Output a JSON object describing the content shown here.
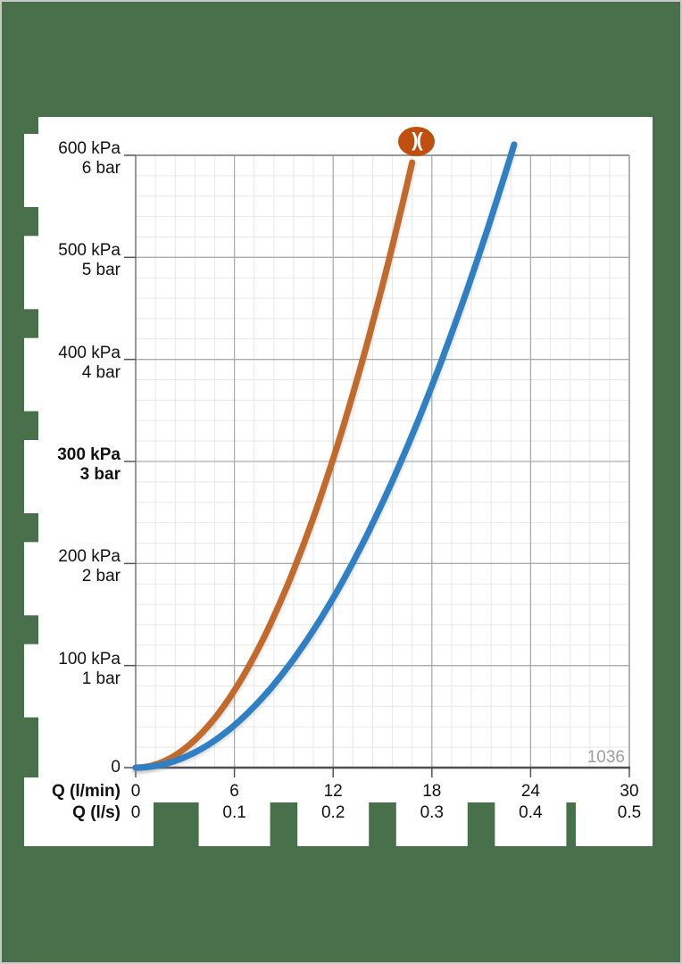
{
  "page": {
    "background_color": "#48704B",
    "panel_color": "#FFFFFF",
    "border_color": "#C8C8C8"
  },
  "branding": {
    "logo_glyph": ")(",
    "logo_color": "#BF4E0F"
  },
  "annotation": {
    "code": "1036"
  },
  "chart_data": {
    "type": "line",
    "x_axis": {
      "unit_rows": [
        {
          "label": "Q (l/min)",
          "ticks": [
            {
              "q": 0,
              "label": "0"
            },
            {
              "q": 6,
              "label": "6"
            },
            {
              "q": 12,
              "label": "12"
            },
            {
              "q": 18,
              "label": "18"
            },
            {
              "q": 24,
              "label": "24"
            },
            {
              "q": 30,
              "label": "30"
            }
          ]
        },
        {
          "label": "Q (l/s)",
          "ticks": [
            {
              "q": 0,
              "label": "0"
            },
            {
              "q": 6,
              "label": "0.1"
            },
            {
              "q": 12,
              "label": "0.2"
            },
            {
              "q": 18,
              "label": "0.3"
            },
            {
              "q": 24,
              "label": "0.4"
            },
            {
              "q": 30,
              "label": "0.5"
            }
          ]
        }
      ],
      "xlim_lmin": [
        0,
        30
      ],
      "major_step_lmin": 6,
      "minor_step_lmin": 1.2
    },
    "y_axis": {
      "ticks": [
        {
          "kpa_label": "600 kPa",
          "bar_label": "6 bar",
          "kpa": 600,
          "bold": false
        },
        {
          "kpa_label": "500 kPa",
          "bar_label": "5 bar",
          "kpa": 500,
          "bold": false
        },
        {
          "kpa_label": "400 kPa",
          "bar_label": "4 bar",
          "kpa": 400,
          "bold": false
        },
        {
          "kpa_label": "300 kPa",
          "bar_label": "3 bar",
          "kpa": 300,
          "bold": true
        },
        {
          "kpa_label": "200 kPa",
          "bar_label": "2 bar",
          "kpa": 200,
          "bold": false
        },
        {
          "kpa_label": "100 kPa",
          "bar_label": "1 bar",
          "kpa": 100,
          "bold": false
        },
        {
          "kpa_label": "0",
          "bar_label": "",
          "kpa": 0,
          "bold": false
        }
      ],
      "ylim_kpa": [
        0,
        600
      ],
      "major_step_kpa": 100,
      "minor_step_kpa": 20
    },
    "grid": {
      "major_color": "#ACACAC",
      "minor_color": "#E8E8E8",
      "border_color": "#999999",
      "axis_color": "#4F4F4F"
    },
    "series": [
      {
        "name": "curve-orange",
        "color": "#C2692C",
        "points_q_lmin_vs_p_kpa": [
          [
            0,
            0
          ],
          [
            6.9,
            100
          ],
          [
            9.8,
            200
          ],
          [
            12.0,
            300
          ],
          [
            13.8,
            400
          ],
          [
            15.4,
            500
          ],
          [
            16.9,
            600
          ]
        ],
        "drawn_to_kpa": 607
      },
      {
        "name": "curve-blue",
        "color": "#2E7FC3",
        "points_q_lmin_vs_p_kpa": [
          [
            0,
            0
          ],
          [
            9.3,
            100
          ],
          [
            13.2,
            200
          ],
          [
            16.1,
            300
          ],
          [
            18.6,
            400
          ],
          [
            20.8,
            500
          ],
          [
            22.8,
            600
          ]
        ],
        "drawn_to_kpa": 611
      }
    ]
  }
}
